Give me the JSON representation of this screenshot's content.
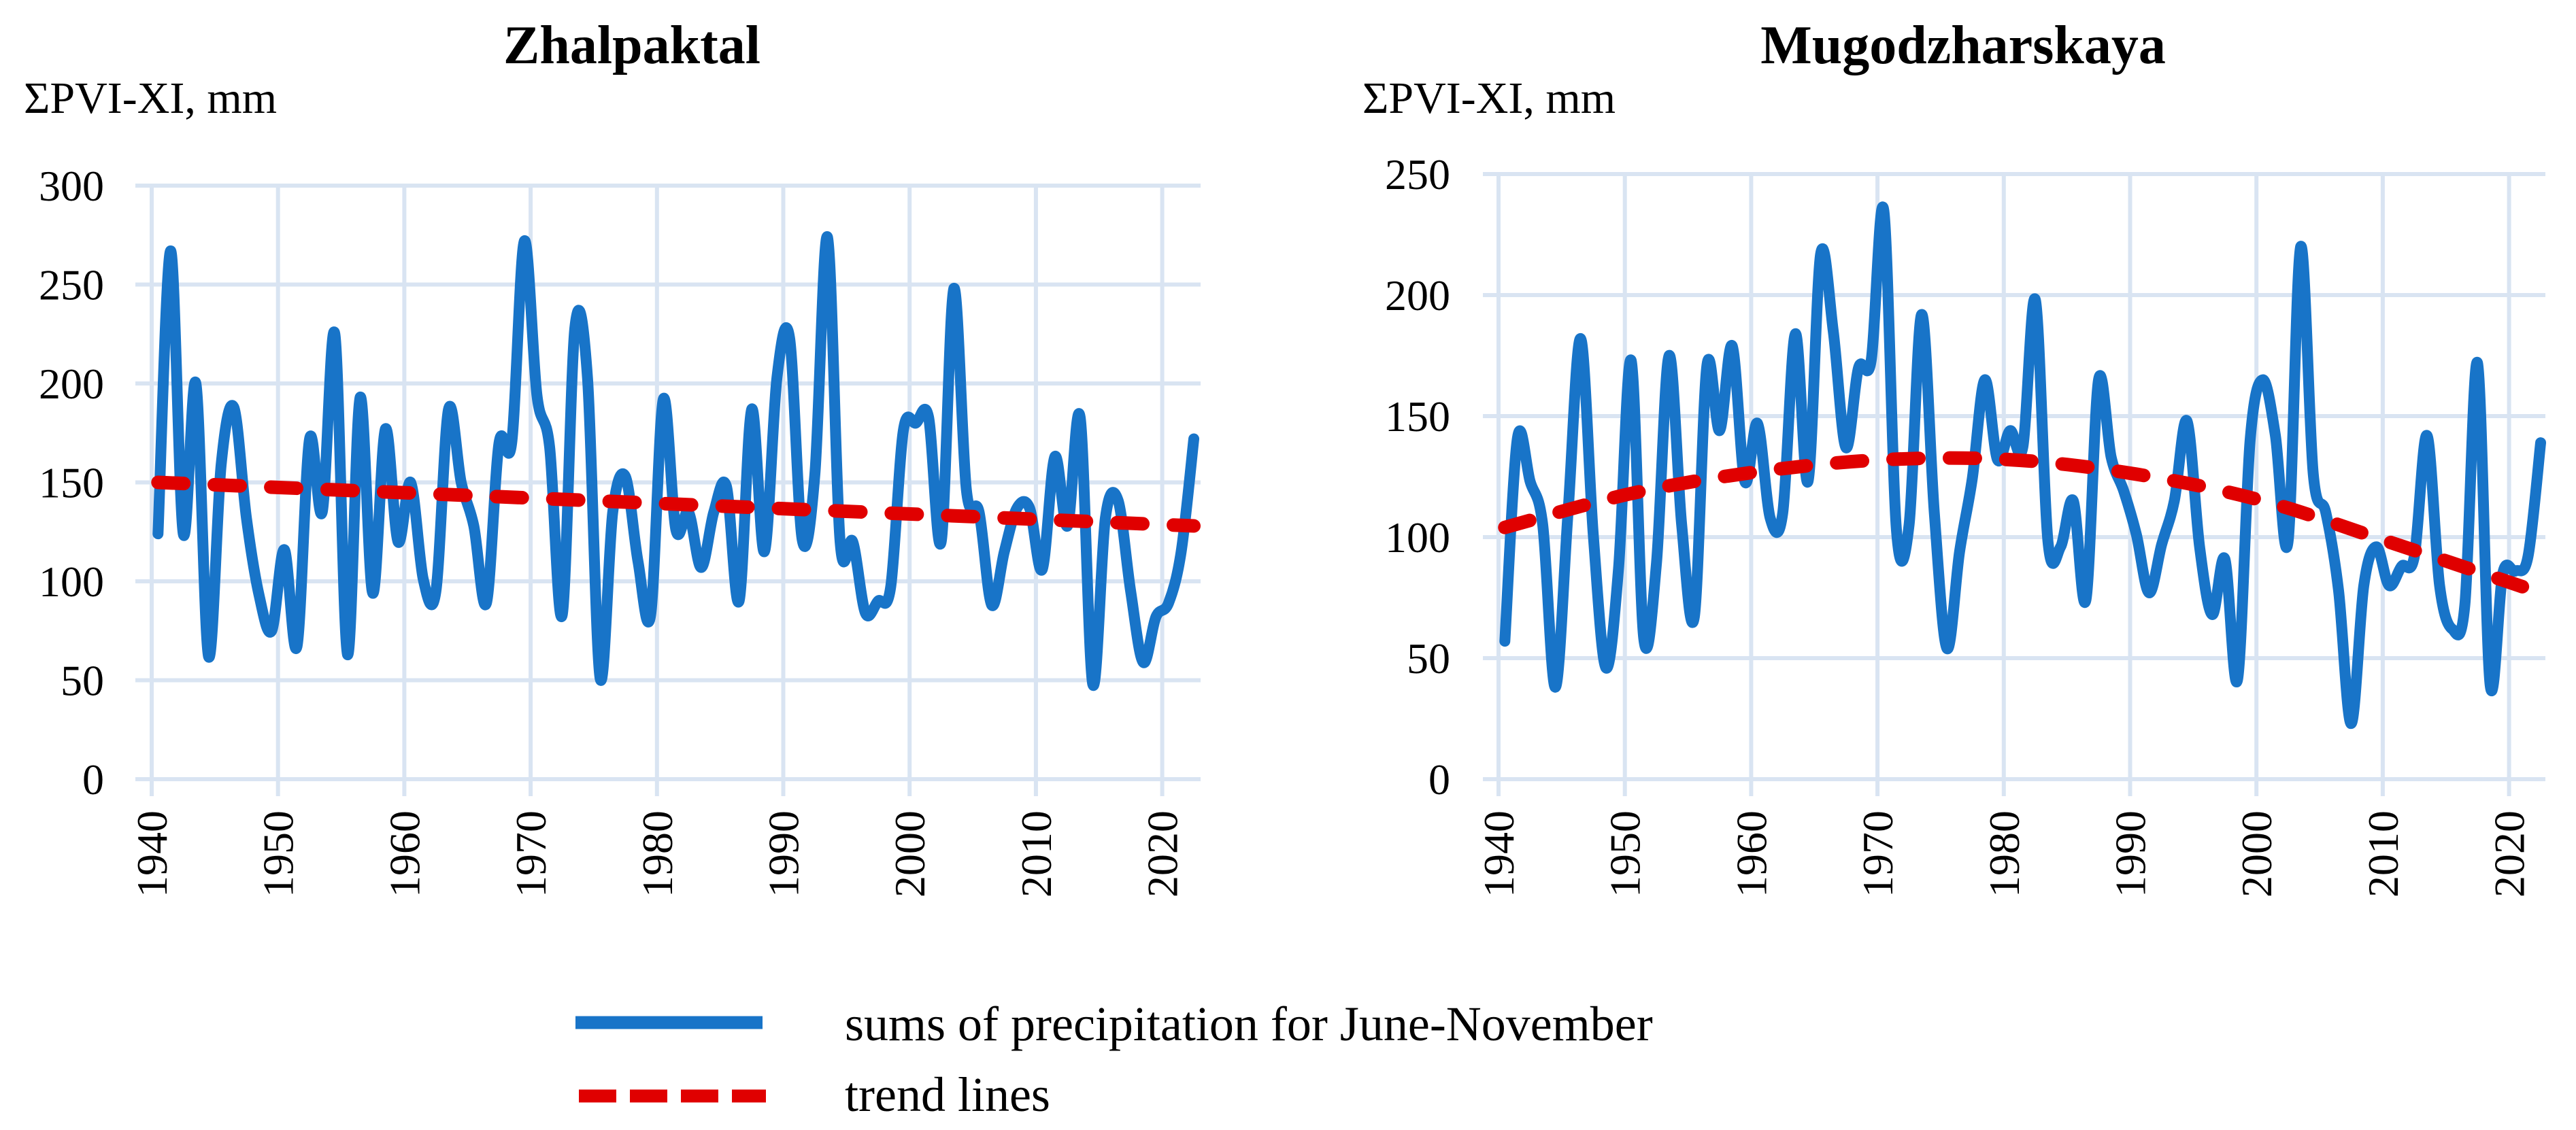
{
  "chart_data": [
    {
      "type": "line",
      "title": "Zhalpaktal",
      "ylabel": "ΣPVI-XI, mm",
      "xlabel": "",
      "xlim": [
        1940,
        2023
      ],
      "ylim": [
        0,
        300
      ],
      "yticks": [
        "0",
        "50",
        "100",
        "150",
        "200",
        "250",
        "300"
      ],
      "xticks": [
        "1940",
        "1950",
        "1960",
        "1970",
        "1980",
        "1990",
        "2000",
        "2010",
        "2020"
      ],
      "grid": true,
      "start_year": 1940,
      "series": [
        {
          "name": "sums of precipitation for June-November",
          "values": [
            124,
            267,
            124,
            200,
            62,
            159,
            188,
            132,
            93,
            75,
            116,
            67,
            172,
            135,
            225,
            63,
            193,
            94,
            177,
            120,
            150,
            101,
            95,
            187,
            150,
            128,
            89,
            170,
            170,
            272,
            194,
            168,
            83,
            228,
            203,
            51,
            135,
            153,
            110,
            83,
            192,
            126,
            135,
            107,
            135,
            148,
            90,
            187,
            115,
            203,
            223,
            121,
            154,
            274,
            120,
            120,
            84,
            90,
            97,
            176,
            180,
            183,
            120,
            248,
            146,
            135,
            88,
            115,
            137,
            137,
            106,
            163,
            128,
            183,
            48,
            132,
            141,
            95,
            59,
            82,
            89,
            115,
            172
          ]
        },
        {
          "name": "trend lines",
          "x": [
            1940,
            2022
          ],
          "values": [
            150,
            128
          ]
        }
      ]
    },
    {
      "type": "line",
      "title": "Mugodzharskaya",
      "ylabel": "ΣPVI-XI, mm",
      "xlabel": "",
      "xlim": [
        1940,
        2023
      ],
      "ylim": [
        0,
        250
      ],
      "yticks": [
        "0",
        "50",
        "100",
        "150",
        "200",
        "250"
      ],
      "xticks": [
        "1940",
        "1950",
        "1960",
        "1970",
        "1980",
        "1990",
        "2000",
        "2010",
        "2020"
      ],
      "grid": true,
      "start_year": 1940,
      "series": [
        {
          "name": "sums of precipitation for June-November",
          "values": [
            57,
            141,
            123,
            105,
            38,
            110,
            182,
            101,
            46,
            87,
            173,
            58,
            89,
            175,
            105,
            67,
            171,
            144,
            179,
            123,
            147,
            108,
            110,
            184,
            123,
            217,
            185,
            137,
            170,
            173,
            235,
            103,
            105,
            192,
            110,
            54,
            94,
            124,
            165,
            132,
            144,
            137,
            198,
            98,
            96,
            115,
            74,
            165,
            133,
            119,
            101,
            77,
            97,
            115,
            148,
            96,
            68,
            91,
            41,
            140,
            165,
            142,
            98,
            220,
            126,
            110,
            78,
            23,
            80,
            96,
            80,
            88,
            92,
            142,
            80,
            62,
            72,
            172,
            39,
            85,
            86,
            92,
            139
          ]
        },
        {
          "name": "trend lines",
          "x": [
            1940,
            1950,
            1960,
            1970,
            1980,
            1990,
            2000,
            2010,
            2022
          ],
          "values": [
            104,
            118,
            127,
            132,
            132,
            126,
            115,
            98,
            77
          ]
        }
      ]
    }
  ],
  "legend": {
    "items": [
      {
        "label": "sums of precipitation for June-November",
        "color": "#1874c8",
        "style": "solid"
      },
      {
        "label": "trend lines",
        "color": "#e00000",
        "style": "dashed"
      }
    ],
    "placement": "bottom-center"
  },
  "colors": {
    "series": "#1874c8",
    "trend": "#e00000",
    "grid": "#d9e4f2"
  }
}
